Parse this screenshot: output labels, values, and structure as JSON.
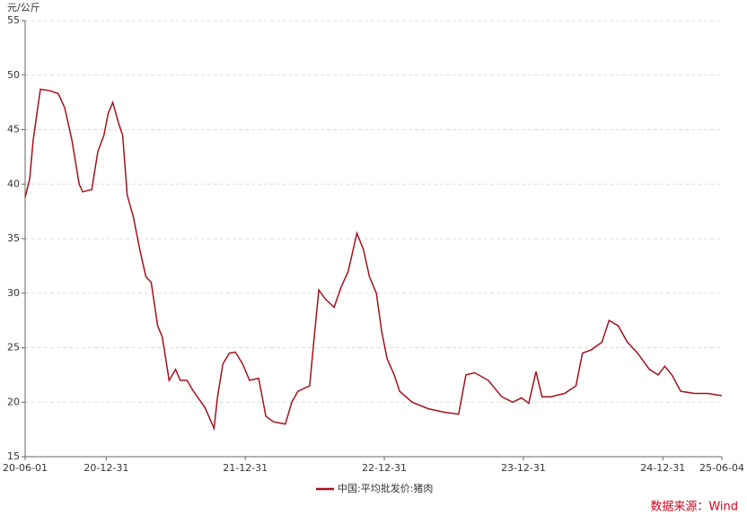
{
  "chart_data": {
    "type": "line",
    "y_label": "元/公斤",
    "source": "数据来源：Wind",
    "x": [
      "20-06-01",
      "20-06-13",
      "20-06-22",
      "20-07-04",
      "20-07-11",
      "20-08-03",
      "20-08-27",
      "20-09-13",
      "20-10-02",
      "20-10-21",
      "20-10-30",
      "20-11-23",
      "20-12-09",
      "20-12-25",
      "21-01-05",
      "21-01-17",
      "21-02-02",
      "21-02-12",
      "21-02-24",
      "21-03-12",
      "21-03-29",
      "21-04-14",
      "21-04-28",
      "21-05-15",
      "21-05-27",
      "21-06-14",
      "21-07-01",
      "21-07-13",
      "21-07-31",
      "21-08-17",
      "21-09-16",
      "21-10-10",
      "21-10-19",
      "21-11-02",
      "21-11-19",
      "21-12-05",
      "21-12-24",
      "22-01-11",
      "22-02-04",
      "22-02-23",
      "22-03-15",
      "22-04-15",
      "22-05-02",
      "22-05-18",
      "22-06-18",
      "22-06-30",
      "22-07-12",
      "22-07-28",
      "22-08-21",
      "22-09-08",
      "22-09-27",
      "22-10-20",
      "22-11-06",
      "22-11-22",
      "22-12-10",
      "22-12-24",
      "23-01-07",
      "23-01-26",
      "23-02-09",
      "23-03-14",
      "23-04-25",
      "23-06-04",
      "23-07-14",
      "23-08-02",
      "23-08-25",
      "23-09-30",
      "23-11-04",
      "23-12-03",
      "23-12-26",
      "24-01-14",
      "24-02-02",
      "24-02-18",
      "24-03-12",
      "24-04-17",
      "24-05-17",
      "24-06-03",
      "24-06-26",
      "24-07-24",
      "24-08-12",
      "24-09-05",
      "24-09-29",
      "24-10-26",
      "24-11-26",
      "24-12-19",
      "25-01-05",
      "25-01-24",
      "25-02-16",
      "25-03-24",
      "25-04-28",
      "25-06-04"
    ],
    "series": [
      {
        "name": "中国:平均批发价:猪肉",
        "color": "#a3111e",
        "values": [
          38.8,
          40.5,
          44,
          47,
          48.7,
          48.6,
          48.3,
          47,
          44,
          40,
          39.3,
          39.5,
          43,
          44.5,
          46.5,
          47.5,
          45.5,
          44.5,
          39,
          37,
          34,
          31.5,
          31,
          27,
          26,
          22,
          23,
          22,
          22,
          21,
          19.5,
          17.6,
          20.5,
          23.5,
          24.5,
          24.6,
          23.5,
          22,
          22.2,
          18.7,
          18.2,
          18,
          20,
          21,
          21.5,
          26,
          30.3,
          29.5,
          28.7,
          30.5,
          32,
          35.5,
          34,
          31.5,
          30,
          26.5,
          24,
          22.5,
          21,
          20,
          19.4,
          19.1,
          18.9,
          22.5,
          22.7,
          22,
          20.5,
          20,
          20.4,
          19.9,
          22.8,
          20.5,
          20.5,
          20.8,
          21.5,
          24.5,
          24.8,
          25.5,
          27.5,
          27,
          25.5,
          24.5,
          23,
          22.5,
          23.3,
          22.5,
          21,
          20.8,
          20.8,
          20.6
        ]
      }
    ],
    "xlim": [
      "20-06-01",
      "25-06-04"
    ],
    "xticks": [
      "20-06-01",
      "20-12-31",
      "21-12-31",
      "22-12-31",
      "23-12-31",
      "24-12-31",
      "25-06-04"
    ],
    "ylim": [
      15,
      55
    ],
    "yticks": [
      15,
      20,
      25,
      30,
      35,
      40,
      45,
      50,
      55
    ],
    "grid": true
  }
}
